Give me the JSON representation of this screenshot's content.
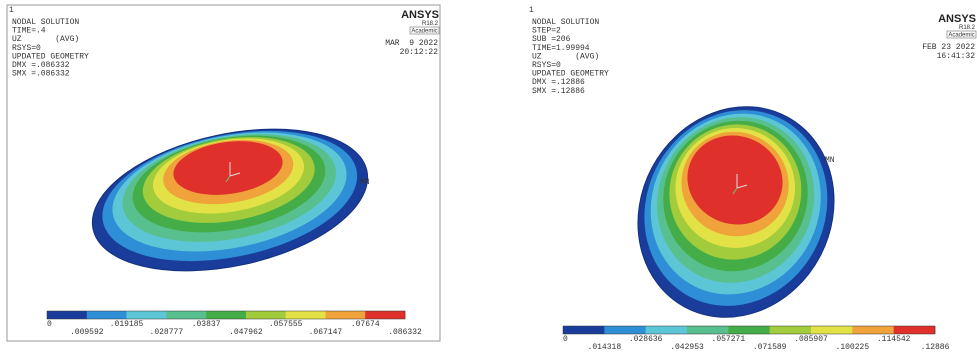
{
  "colors": [
    "#1a3d9c",
    "#2e8fd6",
    "#5dc6d6",
    "#58c08e",
    "#45ad48",
    "#a2cc3c",
    "#e2e246",
    "#efa33a",
    "#e0302c"
  ],
  "panels": [
    {
      "window": "1",
      "logo": "ANSYS",
      "release": "R18.2",
      "license": "Academic",
      "header": [
        "NODAL SOLUTION",
        "TIME=.4",
        "UZ       (AVG)",
        "RSYS=0",
        "UPDATED GEOMETRY",
        "DMX =.086332",
        "SMX =.086332"
      ],
      "date": "MAR  9 2022",
      "time": "20:12:22",
      "min_label": "MN",
      "legend_labels": [
        "0",
        ".009592",
        ".019185",
        ".028777",
        ".03837",
        ".047962",
        ".057555",
        ".067147",
        ".07674",
        ".086332"
      ]
    },
    {
      "window": "1",
      "logo": "ANSYS",
      "release": "R18.2",
      "license": "Academic",
      "header": [
        "NODAL SOLUTION",
        "STEP=2",
        "SUB =206",
        "TIME=1.99994",
        "UZ       (AVG)",
        "RSYS=0",
        "UPDATED GEOMETRY",
        "DMX =.12886",
        "SMX =.12886"
      ],
      "date": "FEB 23 2022",
      "time": "16:41:32",
      "min_label": "MN",
      "legend_labels": [
        "0",
        ".014318",
        ".028636",
        ".042953",
        ".057271",
        ".071589",
        ".085907",
        ".100225",
        ".114542",
        ".12886"
      ]
    }
  ]
}
